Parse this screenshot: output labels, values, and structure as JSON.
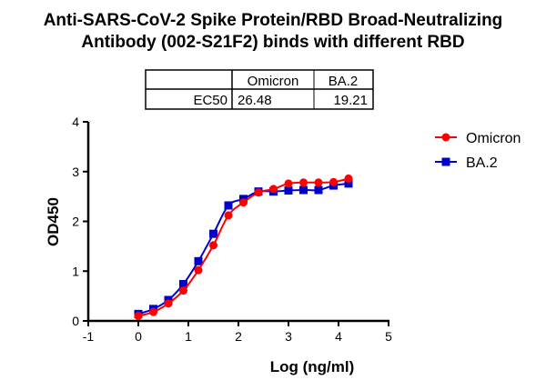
{
  "chart_data": {
    "type": "line",
    "title": [
      "Anti-SARS-CoV-2 Spike Protein/RBD Broad-Neutralizing",
      "Antibody (002-S21F2) binds with different RBD"
    ],
    "xlabel": "Log (ng/ml)",
    "ylabel": "OD450",
    "xlim": [
      -1,
      5
    ],
    "ylim": [
      0,
      4
    ],
    "xticks": [
      "-1",
      "0",
      "1",
      "2",
      "3",
      "4",
      "5"
    ],
    "yticks": [
      "0",
      "1",
      "2",
      "3",
      "4"
    ],
    "legend_position": "top-right",
    "x": [
      0,
      0.3,
      0.6,
      0.9,
      1.2,
      1.5,
      1.8,
      2.1,
      2.4,
      2.7,
      3.0,
      3.3,
      3.6,
      3.9,
      4.2
    ],
    "series": [
      {
        "name": "Omicron",
        "color": "#ff0000",
        "marker": "circle",
        "values": [
          0.1,
          0.18,
          0.35,
          0.61,
          1.02,
          1.52,
          2.12,
          2.38,
          2.58,
          2.65,
          2.76,
          2.78,
          2.78,
          2.79,
          2.86
        ]
      },
      {
        "name": "BA.2",
        "color": "#0000cc",
        "marker": "square",
        "values": [
          0.14,
          0.24,
          0.42,
          0.74,
          1.2,
          1.75,
          2.32,
          2.45,
          2.6,
          2.6,
          2.62,
          2.63,
          2.63,
          2.72,
          2.76
        ]
      }
    ],
    "table": {
      "headers": [
        "",
        "Omicron",
        "BA.2"
      ],
      "row_label": "EC50",
      "values": [
        "26.48",
        "19.21"
      ]
    }
  }
}
